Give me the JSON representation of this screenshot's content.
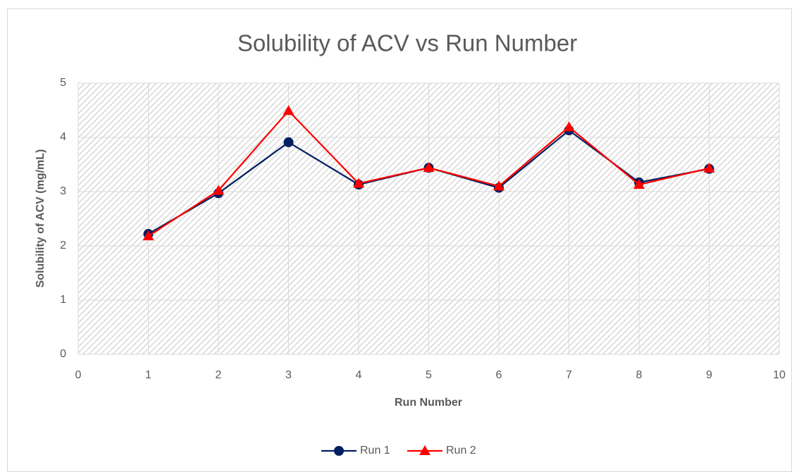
{
  "chart_data": {
    "type": "line",
    "title": "Solubility of ACV vs Run Number",
    "x_label": "Run Number",
    "y_label": "Solubility of ACV (mg/mL)",
    "x": [
      1,
      2,
      3,
      4,
      5,
      6,
      7,
      8,
      9
    ],
    "series": [
      {
        "name": "Run 1",
        "color": "#002060",
        "marker": "circle",
        "values": [
          2.22,
          2.97,
          3.91,
          3.13,
          3.44,
          3.07,
          4.13,
          3.17,
          3.42
        ]
      },
      {
        "name": "Run 2",
        "color": "#ff0000",
        "marker": "triangle",
        "values": [
          2.18,
          3.02,
          4.49,
          3.15,
          3.44,
          3.1,
          4.19,
          3.13,
          3.43
        ]
      }
    ],
    "xlim": [
      0,
      10
    ],
    "xticks": [
      0,
      1,
      2,
      3,
      4,
      5,
      6,
      7,
      8,
      9,
      10
    ],
    "ylim": [
      0,
      5
    ],
    "yticks": [
      0,
      1,
      2,
      3,
      4,
      5
    ],
    "grid": true,
    "legend": "bottom"
  }
}
